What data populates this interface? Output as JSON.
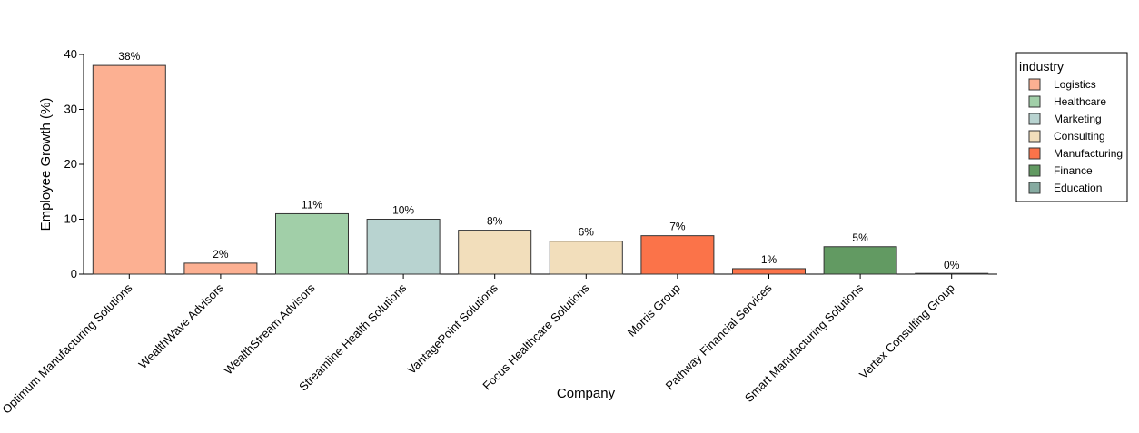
{
  "chart_data": {
    "type": "bar",
    "xlabel": "Company",
    "ylabel": "Employee Growth (%)",
    "ylim": [
      0,
      40
    ],
    "yticks": [
      0,
      10,
      20,
      30,
      40
    ],
    "grid": false,
    "legend_position": "right",
    "legend_title": "industry",
    "categories": [
      "Optimum Manufacturing Solutions",
      "WealthWave Advisors",
      "WealthStream Advisors",
      "Streamline Health Solutions",
      "VantagePoint Solutions",
      "Focus Healthcare Solutions",
      "Morris Group",
      "Pathway Financial Services",
      "Smart Manufacturing Solutions",
      "Vertex Consulting Group"
    ],
    "values": [
      38,
      2,
      11,
      10,
      8,
      6,
      7,
      1,
      5,
      0
    ],
    "value_labels": [
      "38%",
      "2%",
      "11%",
      "10%",
      "8%",
      "6%",
      "7%",
      "1%",
      "5%",
      "0%"
    ],
    "industries": [
      "Logistics",
      "Logistics",
      "Healthcare",
      "Marketing",
      "Consulting",
      "Consulting",
      "Manufacturing",
      "Manufacturing",
      "Finance",
      "Education"
    ],
    "legend": [
      {
        "name": "Logistics",
        "color": "#fcb092"
      },
      {
        "name": "Healthcare",
        "color": "#a1cfa8"
      },
      {
        "name": "Marketing",
        "color": "#b8d3d0"
      },
      {
        "name": "Consulting",
        "color": "#f2debb"
      },
      {
        "name": "Manufacturing",
        "color": "#fb7349"
      },
      {
        "name": "Finance",
        "color": "#629a62"
      },
      {
        "name": "Education",
        "color": "#86aba1"
      }
    ]
  }
}
